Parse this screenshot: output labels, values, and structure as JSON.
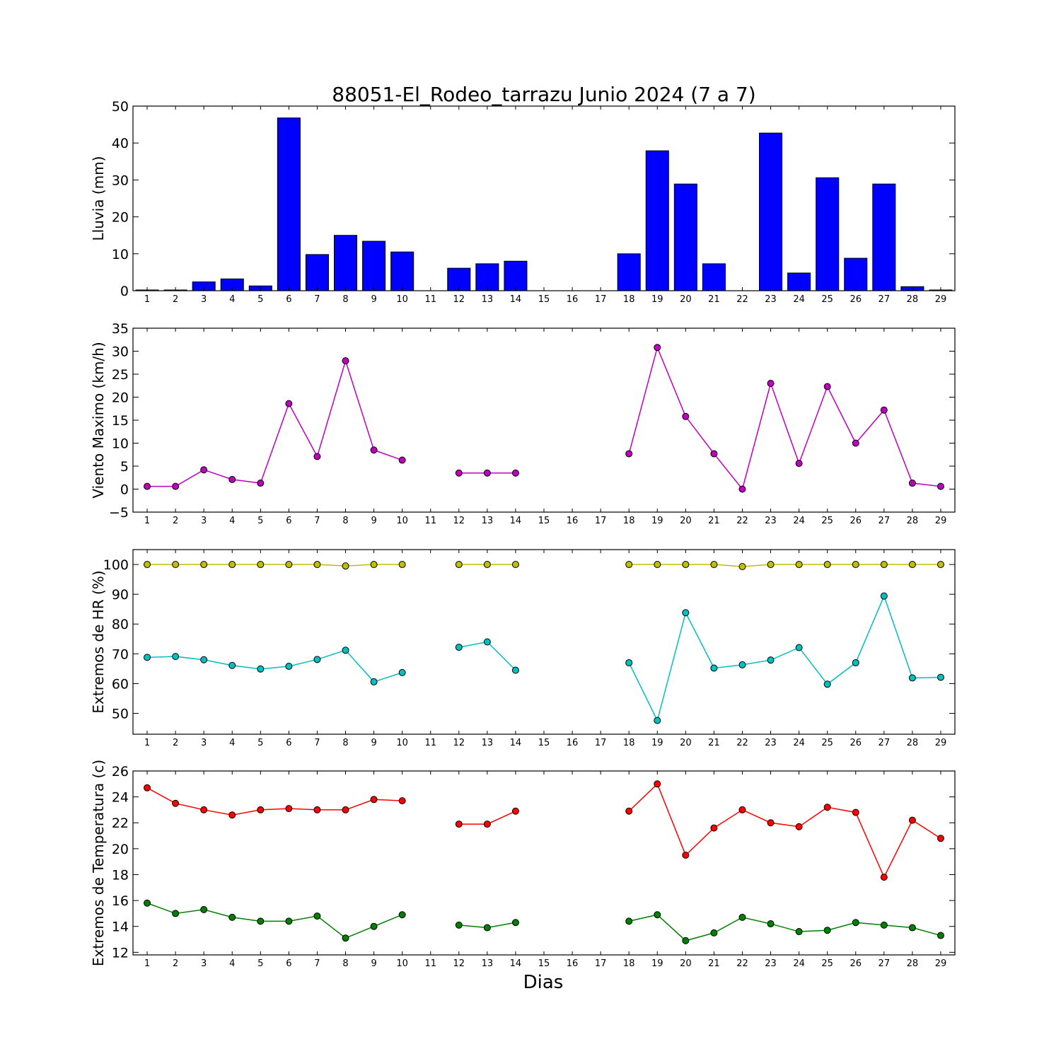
{
  "title": "88051-El_Rodeo_tarrazu Junio 2024  (7 a 7)",
  "xlabel": "Dias",
  "days": [
    1,
    2,
    3,
    4,
    5,
    6,
    7,
    8,
    9,
    10,
    11,
    12,
    13,
    14,
    15,
    16,
    17,
    18,
    19,
    20,
    21,
    22,
    23,
    24,
    25,
    26,
    27,
    28,
    29
  ],
  "chart_data": [
    {
      "type": "bar",
      "ylabel": "Lluvia (mm)",
      "ylim": [
        0,
        50
      ],
      "yticks": [
        0,
        10,
        20,
        30,
        40,
        50
      ],
      "series": [
        {
          "color": "#0000ff",
          "values": [
            0.2,
            0.2,
            2.4,
            3.2,
            1.3,
            46.8,
            9.8,
            15.0,
            13.4,
            10.5,
            null,
            6.1,
            7.3,
            8.0,
            null,
            null,
            null,
            10.0,
            37.9,
            28.9,
            7.3,
            null,
            42.7,
            4.8,
            30.6,
            8.8,
            28.9,
            1.1,
            0.2
          ]
        }
      ]
    },
    {
      "type": "line",
      "ylabel": "Viento Maximo (km/h)",
      "ylim": [
        -5,
        35
      ],
      "yticks": [
        -5,
        0,
        5,
        10,
        15,
        20,
        25,
        30,
        35
      ],
      "series": [
        {
          "color": "#bf00bf",
          "values": [
            0.6,
            0.6,
            4.2,
            2.1,
            1.3,
            18.6,
            7.1,
            27.9,
            8.5,
            6.3,
            null,
            3.5,
            3.5,
            3.5,
            null,
            null,
            null,
            7.7,
            30.8,
            15.8,
            7.7,
            0.0,
            23.0,
            5.6,
            22.3,
            10.0,
            17.2,
            1.3,
            0.6
          ]
        }
      ]
    },
    {
      "type": "line",
      "ylabel": "Extremos de HR (%)",
      "ylim": [
        43,
        105
      ],
      "yticks": [
        50,
        60,
        70,
        80,
        90,
        100
      ],
      "series": [
        {
          "color": "#bfbf00",
          "values": [
            100,
            100,
            100,
            100,
            100,
            100,
            100,
            99.5,
            100,
            100,
            null,
            100,
            100,
            100,
            null,
            null,
            null,
            100,
            100,
            100,
            100,
            99.3,
            100,
            100,
            100,
            100,
            100,
            100,
            100
          ]
        },
        {
          "color": "#00bfbf",
          "values": [
            68.8,
            69.1,
            68.0,
            66.1,
            64.9,
            65.8,
            68.1,
            71.2,
            60.6,
            63.7,
            null,
            72.2,
            74.0,
            64.5,
            null,
            null,
            null,
            67.0,
            47.6,
            83.8,
            65.2,
            66.3,
            67.9,
            72.1,
            59.8,
            67.0,
            89.4,
            61.9,
            62.1
          ]
        }
      ]
    },
    {
      "type": "line",
      "ylabel": "Extremos de Temperatura (c)",
      "ylim": [
        11.8,
        26
      ],
      "yticks": [
        12,
        14,
        16,
        18,
        20,
        22,
        24,
        26
      ],
      "series": [
        {
          "color": "#ff0000",
          "values": [
            24.7,
            23.5,
            23.0,
            22.6,
            23.0,
            23.1,
            23.0,
            23.0,
            23.8,
            23.7,
            null,
            21.9,
            21.9,
            22.9,
            null,
            null,
            null,
            22.9,
            25.0,
            19.5,
            21.6,
            23.0,
            22.0,
            21.7,
            23.2,
            22.8,
            17.8,
            22.2,
            20.8
          ]
        },
        {
          "color": "#007f00",
          "values": [
            15.8,
            15.0,
            15.3,
            14.7,
            14.4,
            14.4,
            14.8,
            13.1,
            14.0,
            14.9,
            null,
            14.1,
            13.9,
            14.3,
            null,
            null,
            null,
            14.4,
            14.9,
            12.9,
            13.5,
            14.7,
            14.2,
            13.6,
            13.7,
            14.3,
            14.1,
            13.9,
            13.3
          ]
        }
      ]
    }
  ]
}
